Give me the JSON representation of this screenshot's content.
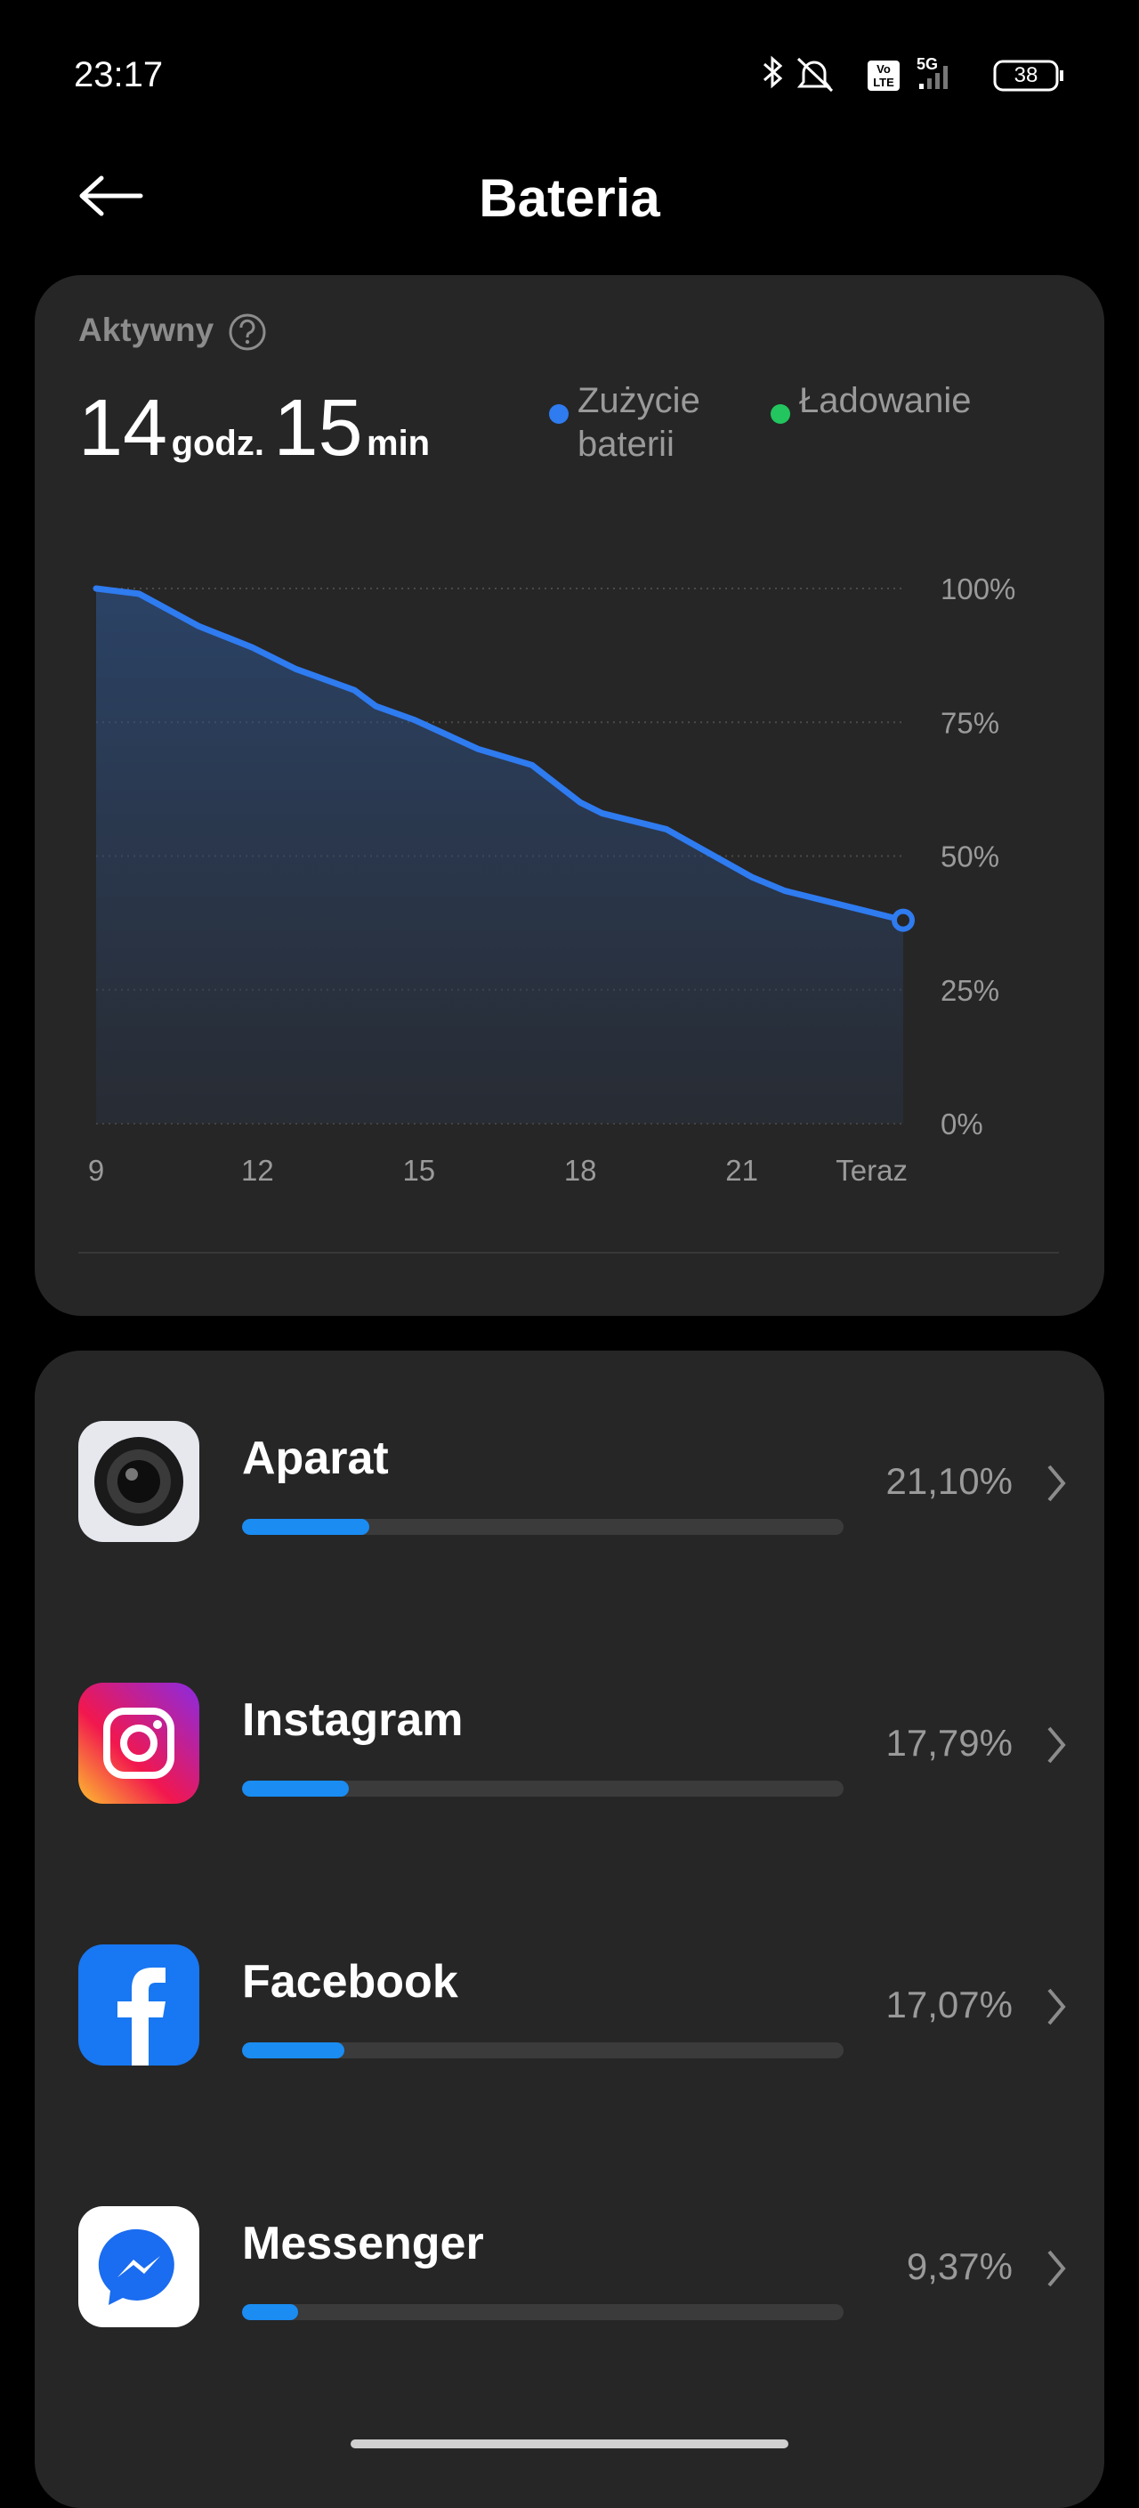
{
  "status_bar": {
    "time": "23:17",
    "battery": "38"
  },
  "header": {
    "title": "Bateria"
  },
  "summary": {
    "label": "Aktywny",
    "hours": "14",
    "hours_unit": "godz.",
    "minutes": "15",
    "minutes_unit": "min"
  },
  "chart_data": {
    "type": "line",
    "x": [
      9,
      9.8,
      10.9,
      11.9,
      12.7,
      13.8,
      14.2,
      14.9,
      16.1,
      17.1,
      18,
      18.4,
      19.6,
      21.2,
      21.8,
      24
    ],
    "series": [
      {
        "name": "Zużycie baterii",
        "color": "#2f7bf0",
        "values": [
          100,
          99,
          93,
          89,
          85,
          81,
          78,
          75.5,
          70,
          67,
          60,
          58,
          55,
          46,
          43.5,
          38
        ]
      },
      {
        "name": "Ładowanie",
        "color": "#22c55e",
        "values": [
          null,
          null,
          null,
          null,
          null,
          null,
          null,
          null,
          null,
          null,
          null,
          null,
          null,
          null,
          null,
          null
        ]
      }
    ],
    "xlim": [
      9,
      24
    ],
    "xticks": [
      9,
      12,
      15,
      18,
      21,
      {
        "value": 24,
        "label": "Teraz"
      }
    ],
    "ylim": [
      0,
      100
    ],
    "yticks": [
      {
        "value": 0,
        "label": "0%"
      },
      {
        "value": 25,
        "label": "25%"
      },
      {
        "value": 50,
        "label": "50%"
      },
      {
        "value": 75,
        "label": "75%"
      },
      {
        "value": 100,
        "label": "100%"
      }
    ],
    "grid": true
  },
  "apps": [
    {
      "name": "Aparat",
      "value": 21.1,
      "value_label": "21,10%"
    },
    {
      "name": "Instagram",
      "value": 17.79,
      "value_label": "17,79%"
    },
    {
      "name": "Facebook",
      "value": 17.07,
      "value_label": "17,07%"
    },
    {
      "name": "Messenger",
      "value": 9.37,
      "value_label": "9,37%"
    }
  ]
}
